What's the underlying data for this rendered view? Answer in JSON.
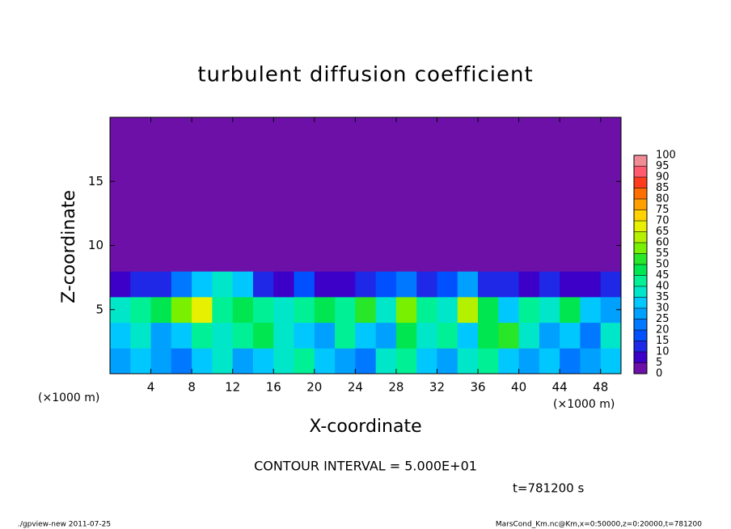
{
  "chart_data": {
    "type": "heatmap",
    "title": "turbulent diffusion coefficient",
    "x_label": "X-coordinate",
    "y_label": "Z-coordinate",
    "x_unit_label": "(×1000 m)",
    "y_unit_label": "(×1000 m)",
    "contour_interval": "CONTOUR INTERVAL = 5.000E+01",
    "time_label": "t=781200 s",
    "footer_left": "./gpview-new  2011-07-25",
    "footer_right": "MarsCond_Km.nc@Km,x=0:50000,z=0:20000,t=781200",
    "xlim": [
      0,
      50
    ],
    "xticks": [
      4,
      8,
      12,
      16,
      20,
      24,
      28,
      32,
      36,
      40,
      44,
      48
    ],
    "ylim": [
      0,
      20
    ],
    "yticks": [
      5,
      10,
      15
    ],
    "x": [
      1,
      3,
      5,
      7,
      9,
      11,
      13,
      15,
      17,
      19,
      21,
      23,
      25,
      27,
      29,
      31,
      33,
      35,
      37,
      39,
      41,
      43,
      45,
      47,
      49
    ],
    "y": [
      1,
      3,
      5,
      7,
      9,
      11,
      13,
      15,
      17,
      19
    ],
    "z": [
      [
        25,
        30,
        25,
        20,
        30,
        35,
        25,
        30,
        35,
        40,
        30,
        25,
        20,
        35,
        40,
        30,
        25,
        35,
        40,
        30,
        25,
        30,
        20,
        25,
        30
      ],
      [
        30,
        35,
        25,
        30,
        40,
        35,
        40,
        45,
        35,
        30,
        25,
        40,
        30,
        25,
        45,
        35,
        40,
        30,
        45,
        50,
        35,
        25,
        30,
        20,
        35
      ],
      [
        35,
        40,
        45,
        55,
        65,
        40,
        45,
        40,
        35,
        40,
        45,
        40,
        50,
        35,
        55,
        40,
        35,
        60,
        45,
        30,
        40,
        35,
        45,
        30,
        25
      ],
      [
        5,
        10,
        10,
        20,
        30,
        35,
        30,
        10,
        5,
        15,
        5,
        5,
        10,
        15,
        20,
        10,
        15,
        25,
        10,
        10,
        5,
        10,
        5,
        5,
        10
      ],
      [
        0,
        0,
        0,
        0,
        0,
        0,
        0,
        0,
        0,
        0,
        0,
        0,
        0,
        0,
        0,
        0,
        0,
        0,
        0,
        0,
        0,
        0,
        0,
        0,
        0
      ],
      [
        0,
        0,
        0,
        0,
        0,
        0,
        0,
        0,
        0,
        0,
        0,
        0,
        0,
        0,
        0,
        0,
        0,
        0,
        0,
        0,
        0,
        0,
        0,
        0,
        0
      ],
      [
        0,
        0,
        0,
        0,
        0,
        0,
        0,
        0,
        0,
        0,
        0,
        0,
        0,
        0,
        0,
        0,
        0,
        0,
        0,
        0,
        0,
        0,
        0,
        0,
        0
      ],
      [
        0,
        0,
        0,
        0,
        0,
        0,
        0,
        0,
        0,
        0,
        0,
        0,
        0,
        0,
        0,
        0,
        0,
        0,
        0,
        0,
        0,
        0,
        0,
        0,
        0
      ],
      [
        0,
        0,
        0,
        0,
        0,
        0,
        0,
        0,
        0,
        0,
        0,
        0,
        0,
        0,
        0,
        0,
        0,
        0,
        0,
        0,
        0,
        0,
        0,
        0,
        0
      ],
      [
        0,
        0,
        0,
        0,
        0,
        0,
        0,
        0,
        0,
        0,
        0,
        0,
        0,
        0,
        0,
        0,
        0,
        0,
        0,
        0,
        0,
        0,
        0,
        0,
        0
      ]
    ],
    "levels": [
      0,
      5,
      10,
      15,
      20,
      25,
      30,
      35,
      40,
      45,
      50,
      55,
      60,
      65,
      70,
      75,
      80,
      85,
      90,
      95,
      100
    ],
    "colors": [
      "#6c10a8",
      "#3c00c8",
      "#1e28e6",
      "#0050ff",
      "#0078ff",
      "#00a0ff",
      "#00c8ff",
      "#00e6c8",
      "#00f096",
      "#00e650",
      "#28e628",
      "#78f000",
      "#b4f000",
      "#e6f000",
      "#ffd200",
      "#ffa000",
      "#ff6e00",
      "#ff3c1e",
      "#ff5a6e",
      "#f08c96"
    ]
  }
}
